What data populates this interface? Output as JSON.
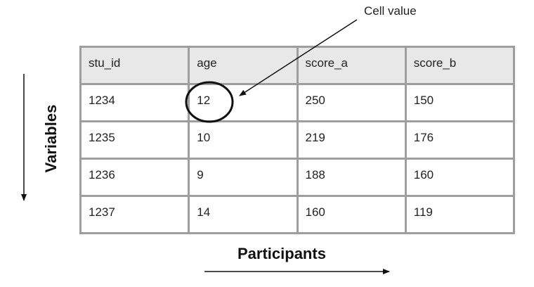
{
  "table": {
    "headers": [
      "stu_id",
      "age",
      "score_a",
      "score_b"
    ],
    "rows": [
      [
        "1234",
        "12",
        "250",
        "150"
      ],
      [
        "1235",
        "10",
        "219",
        "176"
      ],
      [
        "1236",
        "9",
        "188",
        "160"
      ],
      [
        "1237",
        "14",
        "160",
        "119"
      ]
    ]
  },
  "annotations": {
    "callout": "Cell value",
    "x_axis": "Participants",
    "y_axis": "Variables"
  }
}
